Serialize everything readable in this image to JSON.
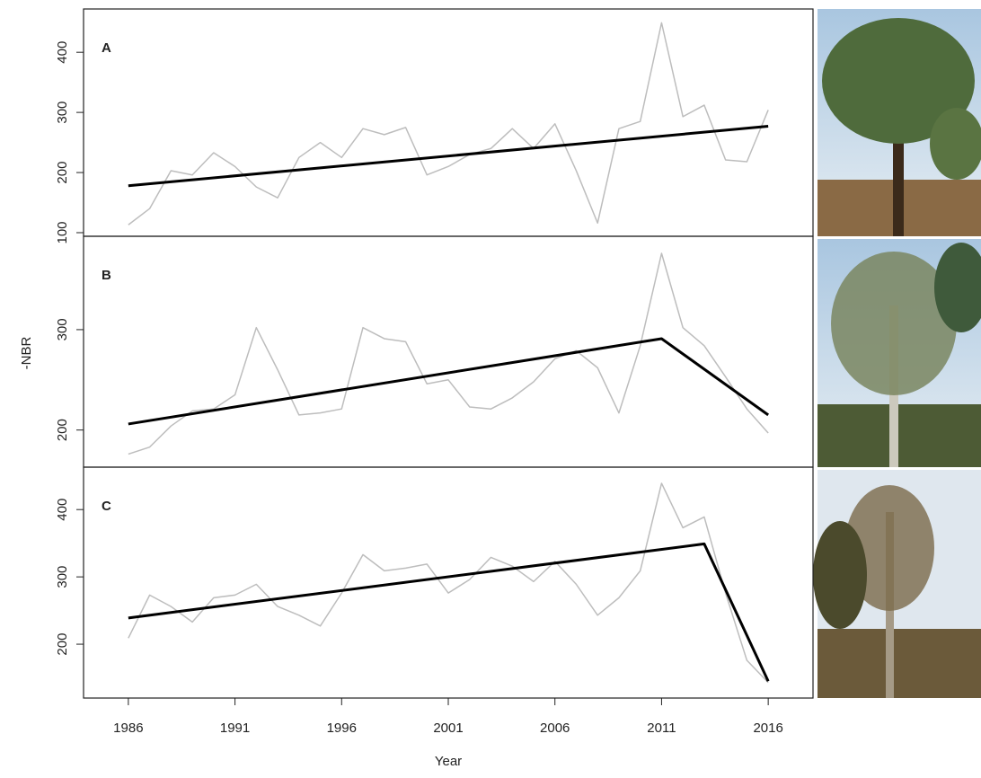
{
  "chart_data": [
    {
      "type": "line",
      "label": "A",
      "x": [
        1986,
        1987,
        1988,
        1989,
        1990,
        1991,
        1992,
        1993,
        1994,
        1995,
        1996,
        1997,
        1998,
        1999,
        2000,
        2001,
        2002,
        2003,
        2004,
        2005,
        2006,
        2007,
        2008,
        2009,
        2010,
        2011,
        2012,
        2013,
        2014,
        2015,
        2016
      ],
      "xlim": [
        1983.9,
        2018.1
      ],
      "ylim": [
        94,
        472
      ],
      "yticks": [
        100,
        200,
        300,
        400
      ],
      "series": [
        {
          "color": "#bdbdbd",
          "values": [
            113,
            140,
            203,
            196,
            233,
            210,
            176,
            158,
            225,
            250,
            225,
            273,
            263,
            275,
            196,
            210,
            230,
            240,
            273,
            240,
            281,
            203,
            116,
            273,
            285,
            449,
            293,
            312,
            221,
            218,
            304
          ]
        },
        {
          "color": "#000000",
          "x": [
            1986,
            2016
          ],
          "values": [
            178,
            277
          ]
        }
      ]
    },
    {
      "type": "line",
      "label": "B",
      "ylabel": "-NBR",
      "x": [
        1986,
        1987,
        1988,
        1989,
        1990,
        1991,
        1992,
        1993,
        1994,
        1995,
        1996,
        1997,
        1998,
        1999,
        2000,
        2001,
        2002,
        2003,
        2004,
        2005,
        2006,
        2007,
        2008,
        2009,
        2010,
        2011,
        2012,
        2013,
        2014,
        2015,
        2016
      ],
      "xlim": [
        1983.9,
        2018.1
      ],
      "ylim": [
        163,
        393
      ],
      "yticks": [
        200,
        300
      ],
      "series": [
        {
          "color": "#bdbdbd",
          "values": [
            176,
            183,
            204,
            219,
            221,
            235,
            302,
            260,
            215,
            217,
            221,
            302,
            291,
            288,
            246,
            250,
            223,
            221,
            232,
            248,
            271,
            279,
            262,
            217,
            284,
            376,
            302,
            284,
            253,
            221,
            197
          ]
        },
        {
          "color": "#000000",
          "x": [
            1986,
            2011,
            2016
          ],
          "values": [
            206,
            291,
            215
          ]
        }
      ]
    },
    {
      "type": "line",
      "label": "C",
      "xlabel": "Year",
      "x": [
        1986,
        1987,
        1988,
        1989,
        1990,
        1991,
        1992,
        1993,
        1994,
        1995,
        1996,
        1997,
        1998,
        1999,
        2000,
        2001,
        2002,
        2003,
        2004,
        2005,
        2006,
        2007,
        2008,
        2009,
        2010,
        2011,
        2012,
        2013,
        2014,
        2015,
        2016
      ],
      "xlim": [
        1983.9,
        2018.1
      ],
      "xticks": [
        1986,
        1991,
        1996,
        2001,
        2006,
        2011,
        2016
      ],
      "ylim": [
        120,
        463
      ],
      "yticks": [
        200,
        300,
        400
      ],
      "series": [
        {
          "color": "#bdbdbd",
          "values": [
            209,
            273,
            256,
            233,
            269,
            273,
            289,
            256,
            243,
            227,
            276,
            333,
            309,
            313,
            319,
            276,
            296,
            329,
            316,
            293,
            323,
            289,
            243,
            269,
            309,
            439,
            373,
            389,
            276,
            176,
            143
          ]
        },
        {
          "color": "#000000",
          "x": [
            1986,
            2013,
            2016
          ],
          "values": [
            239,
            349,
            145
          ]
        }
      ]
    }
  ]
}
